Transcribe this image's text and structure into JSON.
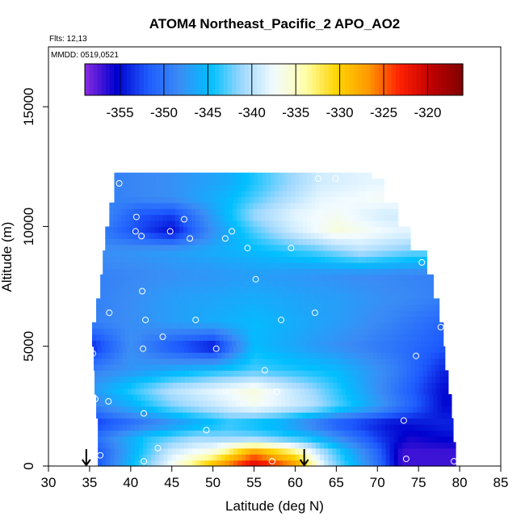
{
  "chart_data": {
    "type": "heatmap",
    "title": "ATOM4 Northeast_Pacific_2 APO_AO2",
    "subtitle_flights": "Flts: 12,13",
    "subtitle_dates": "MMDD: 0519,0521",
    "xlabel": "Latitude (deg N)",
    "ylabel": "Altitude (m)",
    "xlim": [
      30,
      85
    ],
    "ylim": [
      0,
      17500
    ],
    "x_ticks": [
      "30",
      "35",
      "40",
      "45",
      "50",
      "55",
      "60",
      "65",
      "70",
      "75",
      "80",
      "85"
    ],
    "y_ticks": [
      "0",
      "5000",
      "10000",
      "15000"
    ],
    "y_tick_values": [
      0,
      5000,
      10000,
      15000
    ],
    "colorbar": {
      "min": -359,
      "max": -316,
      "ticks": [
        "-355",
        "-350",
        "-345",
        "-340",
        "-335",
        "-330",
        "-325",
        "-320"
      ],
      "tick_values": [
        -355,
        -350,
        -345,
        -340,
        -335,
        -330,
        -325,
        -320
      ],
      "colors": [
        "#8a2be2",
        "#0000cd",
        "#1e5bff",
        "#3b8cf5",
        "#00bfff",
        "#9fd8ff",
        "#f2fbff",
        "#ffffaa",
        "#ffd400",
        "#ff9a00",
        "#ff2000",
        "#c00000",
        "#800000"
      ]
    },
    "arrows_latitude": [
      34.6,
      61.1
    ],
    "altitude_coverage": [
      {
        "alt": 0,
        "lat_min": 36,
        "lat_max": 79.5
      },
      {
        "alt": 1000,
        "lat_min": 36,
        "lat_max": 79.2
      },
      {
        "alt": 2000,
        "lat_min": 35.8,
        "lat_max": 79
      },
      {
        "alt": 3000,
        "lat_min": 35.6,
        "lat_max": 78.6
      },
      {
        "alt": 4000,
        "lat_min": 35.5,
        "lat_max": 78.2
      },
      {
        "alt": 5000,
        "lat_min": 35.3,
        "lat_max": 78
      },
      {
        "alt": 6000,
        "lat_min": 35.8,
        "lat_max": 77.5
      },
      {
        "alt": 7000,
        "lat_min": 36.3,
        "lat_max": 76.8
      },
      {
        "alt": 8000,
        "lat_min": 36.6,
        "lat_max": 76
      },
      {
        "alt": 9000,
        "lat_min": 36.9,
        "lat_max": 74
      },
      {
        "alt": 10000,
        "lat_min": 37.4,
        "lat_max": 72.5
      },
      {
        "alt": 11000,
        "lat_min": 38,
        "lat_max": 70.8
      },
      {
        "alt": 12000,
        "lat_min": 38,
        "lat_max": 69.3
      }
    ],
    "layers": [
      {
        "alt": 0,
        "values": [
          [
            36,
            -352
          ],
          [
            40,
            -345
          ],
          [
            45,
            -337
          ],
          [
            50,
            -328
          ],
          [
            55,
            -320
          ],
          [
            60,
            -326
          ],
          [
            64,
            -340
          ],
          [
            70,
            -350
          ],
          [
            73,
            -357
          ],
          [
            79.5,
            -357
          ]
        ]
      },
      {
        "alt": 600,
        "values": [
          [
            36,
            -352
          ],
          [
            40,
            -346
          ],
          [
            45,
            -339
          ],
          [
            50,
            -336
          ],
          [
            55,
            -327
          ],
          [
            60,
            -333
          ],
          [
            63,
            -340
          ],
          [
            70,
            -351
          ],
          [
            73,
            -357
          ],
          [
            79,
            -357
          ]
        ]
      },
      {
        "alt": 1200,
        "values": [
          [
            36,
            -350
          ],
          [
            42,
            -344
          ],
          [
            48,
            -341
          ],
          [
            55,
            -342
          ],
          [
            62,
            -345
          ],
          [
            70,
            -353
          ],
          [
            74,
            -356
          ],
          [
            79,
            -355
          ]
        ]
      },
      {
        "alt": 1800,
        "values": [
          [
            36,
            -353
          ],
          [
            45,
            -348
          ],
          [
            52,
            -344
          ],
          [
            58,
            -346
          ],
          [
            65,
            -352
          ],
          [
            72,
            -355
          ],
          [
            78,
            -354
          ]
        ]
      },
      {
        "alt": 2500,
        "values": [
          [
            35.8,
            -349
          ],
          [
            45,
            -342
          ],
          [
            55,
            -337
          ],
          [
            62,
            -340
          ],
          [
            70,
            -347
          ],
          [
            78,
            -355
          ]
        ]
      },
      {
        "alt": 3200,
        "values": [
          [
            35.6,
            -347
          ],
          [
            45,
            -340
          ],
          [
            55,
            -336
          ],
          [
            62,
            -341
          ],
          [
            70,
            -348
          ],
          [
            78,
            -355
          ]
        ]
      },
      {
        "alt": 4000,
        "values": [
          [
            35.5,
            -349
          ],
          [
            45,
            -346
          ],
          [
            55,
            -343
          ],
          [
            65,
            -345
          ],
          [
            72,
            -349
          ],
          [
            78,
            -354
          ]
        ]
      },
      {
        "alt": 5000,
        "values": [
          [
            35.3,
            -354
          ],
          [
            40,
            -348
          ],
          [
            45,
            -352
          ],
          [
            50,
            -355
          ],
          [
            55,
            -345
          ],
          [
            65,
            -348
          ],
          [
            72,
            -350
          ],
          [
            78,
            -352
          ]
        ]
      },
      {
        "alt": 6000,
        "values": [
          [
            35.8,
            -349
          ],
          [
            45,
            -347
          ],
          [
            55,
            -345
          ],
          [
            65,
            -347
          ],
          [
            72,
            -349
          ],
          [
            77.5,
            -351
          ]
        ]
      },
      {
        "alt": 7000,
        "values": [
          [
            36.3,
            -349
          ],
          [
            45,
            -347
          ],
          [
            55,
            -346
          ],
          [
            65,
            -347
          ],
          [
            76.8,
            -349
          ]
        ]
      },
      {
        "alt": 8000,
        "values": [
          [
            36.6,
            -349
          ],
          [
            45,
            -348
          ],
          [
            55,
            -347
          ],
          [
            65,
            -348
          ],
          [
            76,
            -349
          ]
        ]
      },
      {
        "alt": 9000,
        "values": [
          [
            36.9,
            -348
          ],
          [
            45,
            -347
          ],
          [
            55,
            -345
          ],
          [
            62,
            -343
          ],
          [
            68,
            -340
          ],
          [
            74,
            -342
          ]
        ]
      },
      {
        "alt": 9800,
        "values": [
          [
            37.4,
            -350
          ],
          [
            40,
            -352
          ],
          [
            45,
            -355
          ],
          [
            50,
            -348
          ],
          [
            55,
            -343
          ],
          [
            60,
            -339
          ],
          [
            65,
            -336
          ],
          [
            72.5,
            -338
          ]
        ]
      },
      {
        "alt": 10500,
        "values": [
          [
            37.6,
            -349
          ],
          [
            41,
            -352
          ],
          [
            45,
            -353
          ],
          [
            50,
            -347
          ],
          [
            55,
            -341
          ],
          [
            60,
            -338
          ],
          [
            65,
            -337
          ],
          [
            71,
            -339
          ]
        ]
      },
      {
        "alt": 11200,
        "values": [
          [
            38,
            -349
          ],
          [
            45,
            -348
          ],
          [
            52,
            -345
          ],
          [
            58,
            -341
          ],
          [
            63,
            -338
          ],
          [
            70.5,
            -337
          ]
        ]
      },
      {
        "alt": 11800,
        "values": [
          [
            38,
            -349
          ],
          [
            45,
            -348
          ],
          [
            52,
            -346
          ],
          [
            58,
            -342
          ],
          [
            63,
            -339
          ],
          [
            69.3,
            -338
          ]
        ]
      }
    ],
    "observations": [
      [
        38.6,
        11800
      ],
      [
        40.7,
        10400
      ],
      [
        40.6,
        9800
      ],
      [
        41.3,
        9600
      ],
      [
        46.5,
        10300
      ],
      [
        44.8,
        9800
      ],
      [
        47.2,
        9500
      ],
      [
        52.3,
        9800
      ],
      [
        51.5,
        9500
      ],
      [
        54.2,
        9100
      ],
      [
        59.5,
        9100
      ],
      [
        55.2,
        7800
      ],
      [
        41.4,
        7300
      ],
      [
        37.4,
        6400
      ],
      [
        41.8,
        6100
      ],
      [
        47.9,
        6100
      ],
      [
        58.3,
        6100
      ],
      [
        62.4,
        6400
      ],
      [
        43.9,
        5400
      ],
      [
        41.5,
        4900
      ],
      [
        50.4,
        4900
      ],
      [
        35.4,
        4700
      ],
      [
        74.7,
        4600
      ],
      [
        56.3,
        4000
      ],
      [
        57.8,
        3100
      ],
      [
        75.4,
        8500
      ],
      [
        77.7,
        5800
      ],
      [
        35.7,
        2800
      ],
      [
        37.3,
        2700
      ],
      [
        41.6,
        2200
      ],
      [
        73.2,
        1900
      ],
      [
        49.2,
        1500
      ],
      [
        43.3,
        750
      ],
      [
        36.3,
        450
      ],
      [
        41.6,
        200
      ],
      [
        57.2,
        200
      ],
      [
        73.5,
        300
      ],
      [
        79.3,
        200
      ],
      [
        62.8,
        12000
      ],
      [
        64.9,
        12000
      ]
    ]
  }
}
